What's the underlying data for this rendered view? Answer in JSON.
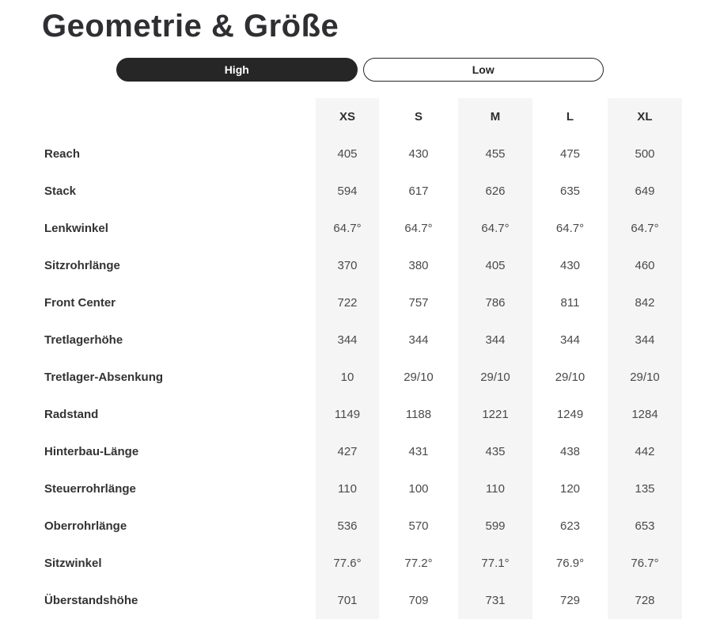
{
  "title": "Geometrie & Größe",
  "toggle": {
    "options": [
      "High",
      "Low"
    ],
    "selected": "High"
  },
  "colors": {
    "accent_dark": "#262626",
    "stripe_background": "#f5f5f5",
    "label_text": "#333333",
    "value_text": "#4a4a4a"
  },
  "table": {
    "columns": [
      "XS",
      "S",
      "M",
      "L",
      "XL"
    ],
    "striped_columns": [
      "XS",
      "M",
      "XL"
    ],
    "rows": [
      {
        "label": "Reach",
        "values": [
          "405",
          "430",
          "455",
          "475",
          "500"
        ]
      },
      {
        "label": "Stack",
        "values": [
          "594",
          "617",
          "626",
          "635",
          "649"
        ]
      },
      {
        "label": "Lenkwinkel",
        "values": [
          "64.7°",
          "64.7°",
          "64.7°",
          "64.7°",
          "64.7°"
        ]
      },
      {
        "label": "Sitzrohrlänge",
        "values": [
          "370",
          "380",
          "405",
          "430",
          "460"
        ]
      },
      {
        "label": "Front Center",
        "values": [
          "722",
          "757",
          "786",
          "811",
          "842"
        ]
      },
      {
        "label": "Tretlagerhöhe",
        "values": [
          "344",
          "344",
          "344",
          "344",
          "344"
        ]
      },
      {
        "label": "Tretlager-Absenkung",
        "values": [
          "10",
          "29/10",
          "29/10",
          "29/10",
          "29/10"
        ]
      },
      {
        "label": "Radstand",
        "values": [
          "1149",
          "1188",
          "1221",
          "1249",
          "1284"
        ]
      },
      {
        "label": "Hinterbau-Länge",
        "values": [
          "427",
          "431",
          "435",
          "438",
          "442"
        ]
      },
      {
        "label": "Steuerrohrlänge",
        "values": [
          "110",
          "100",
          "110",
          "120",
          "135"
        ]
      },
      {
        "label": "Oberrohrlänge",
        "values": [
          "536",
          "570",
          "599",
          "623",
          "653"
        ]
      },
      {
        "label": "Sitzwinkel",
        "values": [
          "77.6°",
          "77.2°",
          "77.1°",
          "76.9°",
          "76.7°"
        ]
      },
      {
        "label": "Überstandshöhe",
        "values": [
          "701",
          "709",
          "731",
          "729",
          "728"
        ]
      }
    ]
  }
}
